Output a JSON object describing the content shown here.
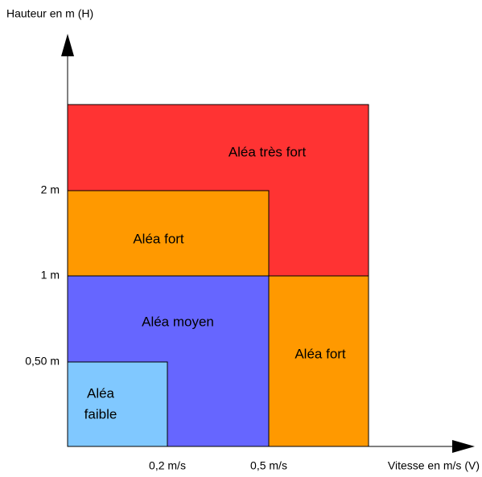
{
  "axes": {
    "y_label": "Hauteur en m (H)",
    "x_label": "Vitesse en m/s (V)",
    "y_ticks": [
      "0,50 m",
      "1 m",
      "2 m"
    ],
    "x_ticks": [
      "0,2 m/s",
      "0,5 m/s"
    ]
  },
  "zones": [
    {
      "label": "Aléa très fort"
    },
    {
      "label": "Aléa fort"
    },
    {
      "label": "Aléa moyen"
    },
    {
      "label": "Aléa fort"
    },
    {
      "lines": [
        "Aléa",
        "faible"
      ]
    }
  ]
}
